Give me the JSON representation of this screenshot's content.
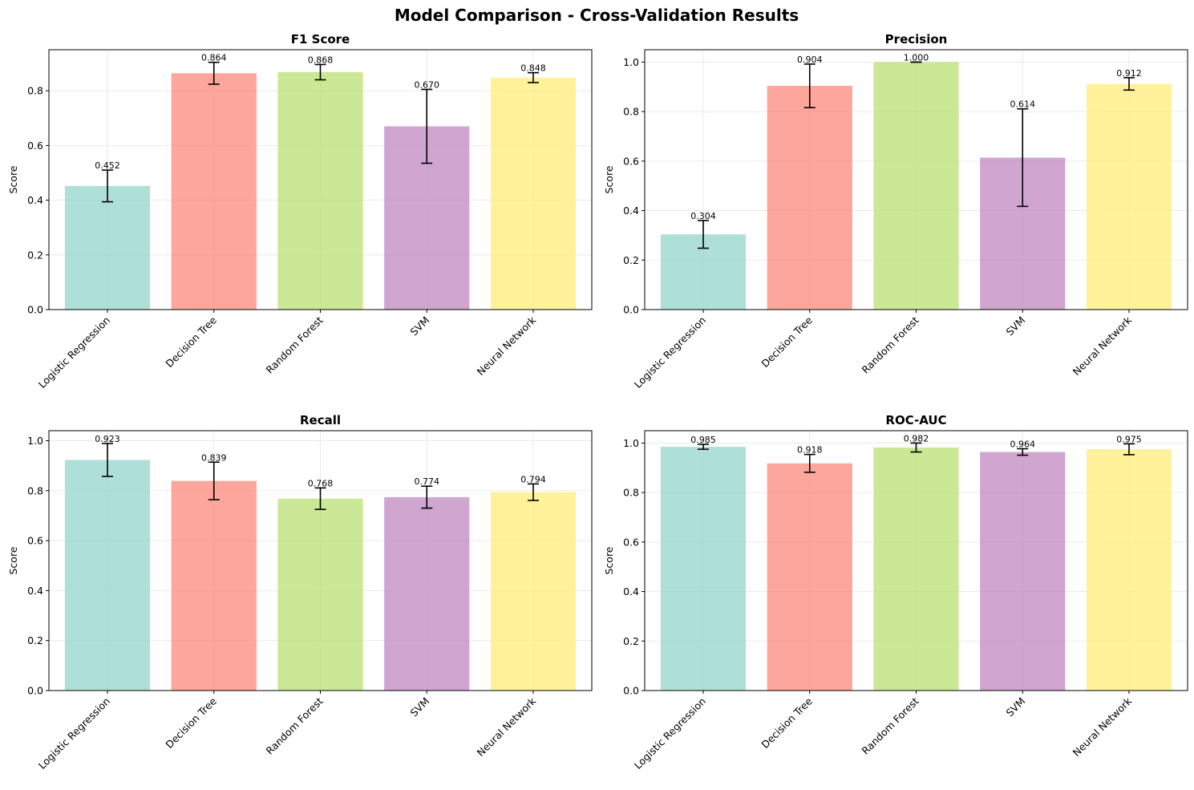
{
  "figure_title": "Model Comparison - Cross-Validation Results",
  "chart_data": [
    {
      "type": "bar",
      "title": "F1 Score",
      "ylabel": "Score",
      "categories": [
        "Logistic Regression",
        "Decision Tree",
        "Random Forest",
        "SVM",
        "Neural Network"
      ],
      "values": [
        0.452,
        0.864,
        0.868,
        0.67,
        0.848
      ],
      "errors": [
        0.058,
        0.04,
        0.028,
        0.135,
        0.018
      ],
      "value_labels": [
        "0.452",
        "0.864",
        "0.868",
        "0.670",
        "0.848"
      ],
      "ylim": [
        0,
        0.95
      ],
      "yticks": [
        0.0,
        0.2,
        0.4,
        0.6,
        0.8
      ],
      "ytick_labels": [
        "0.0",
        "0.2",
        "0.4",
        "0.6",
        "0.8"
      ],
      "grid": true
    },
    {
      "type": "bar",
      "title": "Precision",
      "ylabel": "Score",
      "categories": [
        "Logistic Regression",
        "Decision Tree",
        "Random Forest",
        "SVM",
        "Neural Network"
      ],
      "values": [
        0.304,
        0.904,
        1.0,
        0.614,
        0.912
      ],
      "errors": [
        0.056,
        0.088,
        0.0,
        0.197,
        0.025
      ],
      "value_labels": [
        "0.304",
        "0.904",
        "1.000",
        "0.614",
        "0.912"
      ],
      "ylim": [
        0,
        1.05
      ],
      "yticks": [
        0.0,
        0.2,
        0.4,
        0.6,
        0.8,
        1.0
      ],
      "ytick_labels": [
        "0.0",
        "0.2",
        "0.4",
        "0.6",
        "0.8",
        "1.0"
      ],
      "grid": true
    },
    {
      "type": "bar",
      "title": "Recall",
      "ylabel": "Score",
      "categories": [
        "Logistic Regression",
        "Decision Tree",
        "Random Forest",
        "SVM",
        "Neural Network"
      ],
      "values": [
        0.923,
        0.839,
        0.768,
        0.774,
        0.794
      ],
      "errors": [
        0.066,
        0.075,
        0.043,
        0.044,
        0.033
      ],
      "value_labels": [
        "0.923",
        "0.839",
        "0.768",
        "0.774",
        "0.794"
      ],
      "ylim": [
        0,
        1.04
      ],
      "yticks": [
        0.0,
        0.2,
        0.4,
        0.6,
        0.8,
        1.0
      ],
      "ytick_labels": [
        "0.0",
        "0.2",
        "0.4",
        "0.6",
        "0.8",
        "1.0"
      ],
      "grid": true
    },
    {
      "type": "bar",
      "title": "ROC-AUC",
      "ylabel": "Score",
      "categories": [
        "Logistic Regression",
        "Decision Tree",
        "Random Forest",
        "SVM",
        "Neural Network"
      ],
      "values": [
        0.985,
        0.918,
        0.982,
        0.964,
        0.975
      ],
      "errors": [
        0.01,
        0.036,
        0.018,
        0.013,
        0.022
      ],
      "value_labels": [
        "0.985",
        "0.918",
        "0.982",
        "0.964",
        "0.975"
      ],
      "ylim": [
        0,
        1.05
      ],
      "yticks": [
        0.0,
        0.2,
        0.4,
        0.6,
        0.8,
        1.0
      ],
      "ytick_labels": [
        "0.0",
        "0.2",
        "0.4",
        "0.6",
        "0.8",
        "1.0"
      ],
      "grid": true
    }
  ],
  "colors": {
    "bars": [
      "#8dd3c7",
      "#fb8072",
      "#b3de69",
      "#bc80bd",
      "#ffed6f"
    ],
    "bar_opacity": 0.7,
    "errorbar": "#000000",
    "grid": "#e6e6e6",
    "axes": "#000000"
  }
}
